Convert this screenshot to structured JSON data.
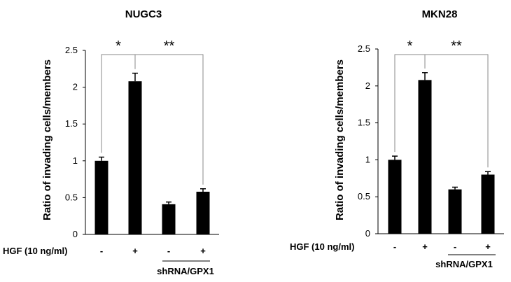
{
  "chart_data": [
    {
      "type": "bar",
      "title": "NUGC3",
      "ylabel": "Ratio of invading cells/members",
      "ylim": [
        0,
        2.5
      ],
      "yticks": [
        "0",
        "0.5",
        "1",
        "1.5",
        "2",
        "2.5"
      ],
      "condition_label": "HGF (10 ng/ml)",
      "hgf": [
        "-",
        "+",
        "-",
        "+"
      ],
      "values": [
        1.0,
        2.08,
        0.41,
        0.58
      ],
      "errors": [
        0.05,
        0.11,
        0.03,
        0.04
      ],
      "group_label": "shRNA/GPX1",
      "significance": [
        {
          "from": 0,
          "to": 1,
          "label": "*"
        },
        {
          "from": 1,
          "to": 3,
          "label": "**"
        }
      ]
    },
    {
      "type": "bar",
      "title": "MKN28",
      "ylabel": "Ratio of invading cells/members",
      "ylim": [
        0,
        2.5
      ],
      "yticks": [
        "0",
        "0.5",
        "1",
        "1.5",
        "2",
        "2.5"
      ],
      "condition_label": "HGF (10 ng/ml)",
      "hgf": [
        "-",
        "+",
        "-",
        "+"
      ],
      "values": [
        1.0,
        2.08,
        0.6,
        0.8
      ],
      "errors": [
        0.05,
        0.1,
        0.03,
        0.04
      ],
      "group_label": "shRNA/GPX1",
      "significance": [
        {
          "from": 0,
          "to": 1,
          "label": "*"
        },
        {
          "from": 1,
          "to": 3,
          "label": "**"
        }
      ]
    }
  ]
}
